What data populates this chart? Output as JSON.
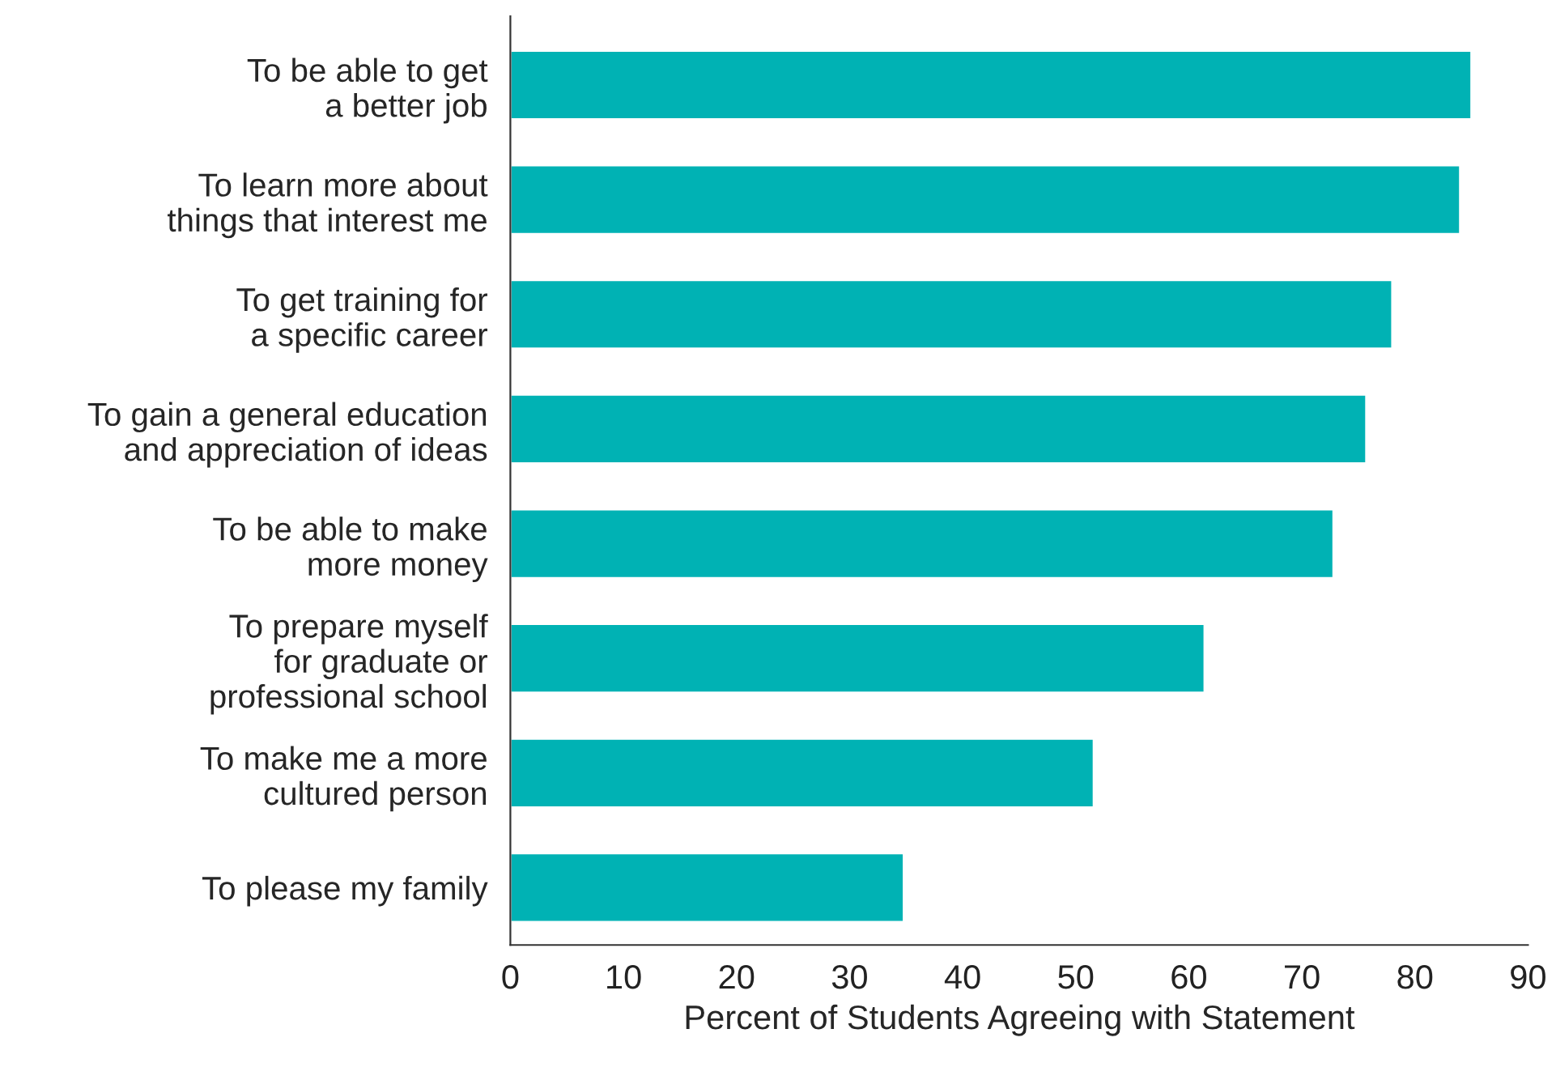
{
  "chart_data": {
    "type": "bar",
    "orientation": "horizontal",
    "categories": [
      "To be able to get\na better job",
      "To learn more about\nthings that interest me",
      "To get training for\na specific career",
      "To gain a general education\nand appreciation of ideas",
      "To be able to make\nmore money",
      "To prepare myself\nfor graduate or\nprofessional school",
      "To make me a more\ncultured person",
      "To please my family"
    ],
    "values": [
      85,
      84,
      78,
      75.7,
      72.8,
      61.4,
      51.6,
      34.8
    ],
    "color": "#00b2b4",
    "xlabel": "Percent of Students Agreeing with Statement",
    "xlim": [
      0,
      90
    ],
    "xticks": [
      0,
      10,
      20,
      30,
      40,
      50,
      60,
      70,
      80,
      90
    ],
    "grid": false,
    "legend": false
  }
}
